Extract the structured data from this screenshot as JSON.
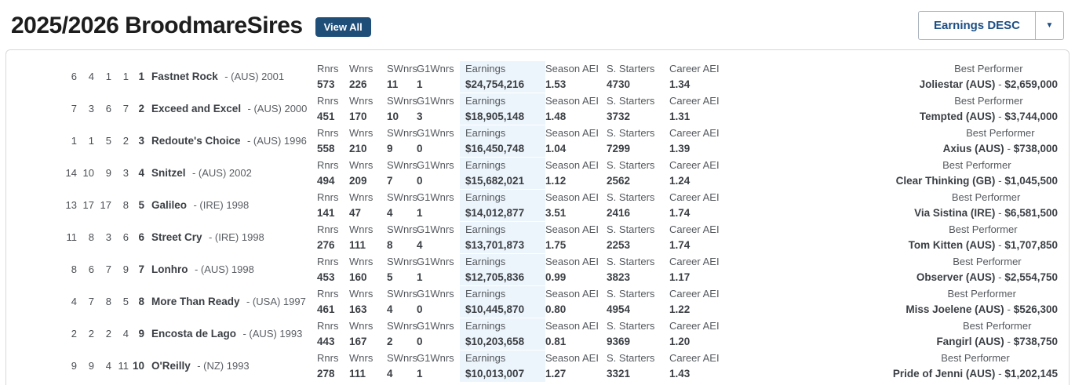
{
  "header": {
    "title": "2025/2026 BroodmareSires",
    "view_all_label": "View All",
    "sort_label": "Earnings DESC",
    "sort_caret": "▼"
  },
  "labels": {
    "best_performer": "Best Performer",
    "bp_sep": " - "
  },
  "colors": {
    "accent_navy": "#1f4e79",
    "sort_text": "#1d4f85",
    "earnings_highlight": "#edf5fc",
    "header_gray": "#55595e",
    "value_dark": "#3b3f44",
    "card_border": "#d8d8d8"
  },
  "stat_headers": [
    "Rnrs",
    "Wnrs",
    "SWnrs",
    "G1Wnrs",
    "Earnings",
    "Season AEI",
    "S. Starters",
    "Career AEI"
  ],
  "rows": [
    {
      "prev_ranks": [
        "6",
        "4",
        "1",
        "1"
      ],
      "rank": "1",
      "name": "Fastnet Rock",
      "origin": "- (AUS) 2001",
      "stats": [
        "573",
        "226",
        "11",
        "1",
        "$24,754,216",
        "1.53",
        "4730",
        "1.34"
      ],
      "bp_name": "Joliestar (AUS)",
      "bp_amount": "$2,659,000"
    },
    {
      "prev_ranks": [
        "7",
        "3",
        "6",
        "7"
      ],
      "rank": "2",
      "name": "Exceed and Excel",
      "origin": "- (AUS) 2000",
      "stats": [
        "451",
        "170",
        "10",
        "3",
        "$18,905,148",
        "1.48",
        "3732",
        "1.31"
      ],
      "bp_name": "Tempted (AUS)",
      "bp_amount": "$3,744,000"
    },
    {
      "prev_ranks": [
        "1",
        "1",
        "5",
        "2"
      ],
      "rank": "3",
      "name": "Redoute's Choice",
      "origin": "- (AUS) 1996",
      "stats": [
        "558",
        "210",
        "9",
        "0",
        "$16,450,748",
        "1.04",
        "7299",
        "1.39"
      ],
      "bp_name": "Axius (AUS)",
      "bp_amount": "$738,000"
    },
    {
      "prev_ranks": [
        "14",
        "10",
        "9",
        "3"
      ],
      "rank": "4",
      "name": "Snitzel",
      "origin": "- (AUS) 2002",
      "stats": [
        "494",
        "209",
        "7",
        "0",
        "$15,682,021",
        "1.12",
        "2562",
        "1.24"
      ],
      "bp_name": "Clear Thinking (GB)",
      "bp_amount": "$1,045,500"
    },
    {
      "prev_ranks": [
        "13",
        "17",
        "17",
        "8"
      ],
      "rank": "5",
      "name": "Galileo",
      "origin": "- (IRE) 1998",
      "stats": [
        "141",
        "47",
        "4",
        "1",
        "$14,012,877",
        "3.51",
        "2416",
        "1.74"
      ],
      "bp_name": "Via Sistina (IRE)",
      "bp_amount": "$6,581,500"
    },
    {
      "prev_ranks": [
        "11",
        "8",
        "3",
        "6"
      ],
      "rank": "6",
      "name": "Street Cry",
      "origin": "- (IRE) 1998",
      "stats": [
        "276",
        "111",
        "8",
        "4",
        "$13,701,873",
        "1.75",
        "2253",
        "1.74"
      ],
      "bp_name": "Tom Kitten (AUS)",
      "bp_amount": "$1,707,850"
    },
    {
      "prev_ranks": [
        "8",
        "6",
        "7",
        "9"
      ],
      "rank": "7",
      "name": "Lonhro",
      "origin": "- (AUS) 1998",
      "stats": [
        "453",
        "160",
        "5",
        "1",
        "$12,705,836",
        "0.99",
        "3823",
        "1.17"
      ],
      "bp_name": "Observer (AUS)",
      "bp_amount": "$2,554,750"
    },
    {
      "prev_ranks": [
        "4",
        "7",
        "8",
        "5"
      ],
      "rank": "8",
      "name": "More Than Ready",
      "origin": "- (USA) 1997",
      "stats": [
        "461",
        "163",
        "4",
        "0",
        "$10,445,870",
        "0.80",
        "4954",
        "1.22"
      ],
      "bp_name": "Miss Joelene (AUS)",
      "bp_amount": "$526,300"
    },
    {
      "prev_ranks": [
        "2",
        "2",
        "2",
        "4"
      ],
      "rank": "9",
      "name": "Encosta de Lago",
      "origin": "- (AUS) 1993",
      "stats": [
        "443",
        "167",
        "2",
        "0",
        "$10,203,658",
        "0.81",
        "9369",
        "1.20"
      ],
      "bp_name": "Fangirl (AUS)",
      "bp_amount": "$738,750"
    },
    {
      "prev_ranks": [
        "9",
        "9",
        "4",
        "11"
      ],
      "rank": "10",
      "name": "O'Reilly",
      "origin": "- (NZ) 1993",
      "stats": [
        "278",
        "111",
        "4",
        "1",
        "$10,013,007",
        "1.27",
        "3321",
        "1.43"
      ],
      "bp_name": "Pride of Jenni (AUS)",
      "bp_amount": "$1,202,145"
    }
  ]
}
